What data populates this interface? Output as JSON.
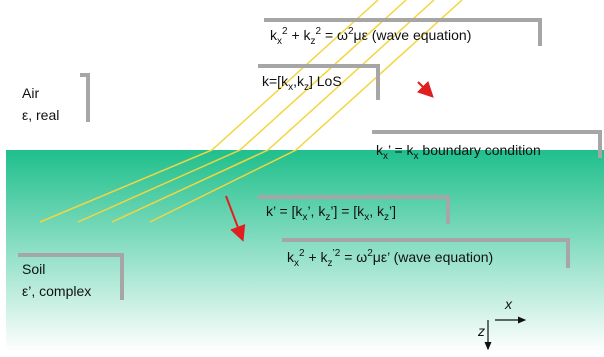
{
  "labels": [
    {
      "parts": [
        [
          "k"
        ],
        [
          "x",
          "sub"
        ],
        [
          "2",
          "sup"
        ],
        [
          " + k"
        ],
        [
          "z",
          "sub"
        ],
        [
          "2",
          "sup"
        ],
        [
          " = ω"
        ],
        [
          "2",
          "sup"
        ],
        [
          "με (wave equation)"
        ]
      ]
    },
    {
      "parts": [
        [
          "k=[k"
        ],
        [
          "x",
          "sub"
        ],
        [
          ",k"
        ],
        [
          "z",
          "sub"
        ],
        [
          "] LoS"
        ]
      ]
    },
    {
      "parts": [
        [
          "Air"
        ]
      ]
    },
    {
      "parts": [
        [
          "ε, real"
        ]
      ]
    },
    {
      "parts": [
        [
          "k"
        ],
        [
          "x",
          "sub"
        ],
        [
          "’ = k"
        ],
        [
          "x",
          "sub"
        ],
        [
          " boundary condition"
        ]
      ]
    },
    {
      "parts": [
        [
          "k’ = [k"
        ],
        [
          "x",
          "sub"
        ],
        [
          "’, k"
        ],
        [
          "z",
          "sub"
        ],
        [
          "’] = [k"
        ],
        [
          "x",
          "sub"
        ],
        [
          ", k"
        ],
        [
          "z",
          "sub"
        ],
        [
          "’]"
        ]
      ]
    },
    {
      "parts": [
        [
          "k"
        ],
        [
          "x",
          "sub"
        ],
        [
          "2",
          "sup"
        ],
        [
          " + k"
        ],
        [
          "z",
          "sub"
        ],
        [
          "’2",
          "sup"
        ],
        [
          " = ω"
        ],
        [
          "2",
          "sup"
        ],
        [
          "με’ (wave equation)"
        ]
      ]
    },
    {
      "parts": [
        [
          "Soil"
        ]
      ]
    },
    {
      "parts": [
        [
          "ε’, complex"
        ]
      ]
    },
    {
      "parts": [
        [
          "x"
        ]
      ]
    },
    {
      "parts": [
        [
          "z"
        ]
      ]
    }
  ]
}
